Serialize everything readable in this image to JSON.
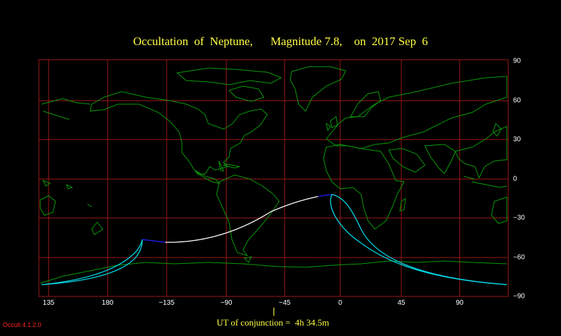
{
  "title": "Occultation  of  Neptune,      Magnitude 7.8,    on  2017 Sep  6",
  "x_ticks": [
    "135",
    "180",
    "−135",
    "−90",
    "−45",
    "0",
    "45",
    "90"
  ],
  "y_ticks": [
    "90",
    "60",
    "30",
    "0",
    "−30",
    "−60",
    "−90"
  ],
  "conjunction": "UT of conjunction =  4h 34.5m",
  "version": "Occult 4.1.2.0",
  "colors": {
    "background": "#000000",
    "grid": "#a01818",
    "coast": "#0a9a0a",
    "path_center": "#ffffff",
    "path_limits": "#00d8e8",
    "path_end": "#2020ff",
    "title": "#ffff44",
    "version": "#ff2020"
  }
}
